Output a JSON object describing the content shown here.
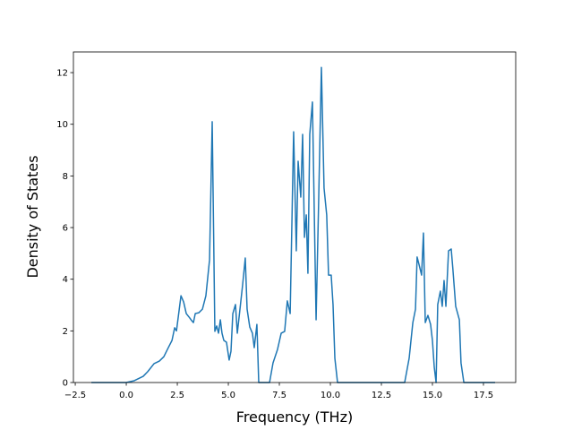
{
  "chart_data": {
    "type": "line",
    "x_label": "Frequency (THz)",
    "y_label": "Density of States",
    "color": "#1f77b4",
    "x": [
      -1.71,
      0,
      0.39,
      0.83,
      1.05,
      1.36,
      1.62,
      1.84,
      2.06,
      2.24,
      2.37,
      2.46,
      2.68,
      2.81,
      2.94,
      3.11,
      3.2,
      3.29,
      3.38,
      3.55,
      3.73,
      3.9,
      4.08,
      4.21,
      4.34,
      4.43,
      4.52,
      4.61,
      4.69,
      4.78,
      4.91,
      5.04,
      5.13,
      5.22,
      5.35,
      5.44,
      5.57,
      5.7,
      5.83,
      5.92,
      6.05,
      6.18,
      6.27,
      6.4,
      6.49,
      7.02,
      7.19,
      7.41,
      7.59,
      7.76,
      7.89,
      8.03,
      8.2,
      8.33,
      8.42,
      8.55,
      8.64,
      8.73,
      8.82,
      8.9,
      8.99,
      9.12,
      9.3,
      9.43,
      9.56,
      9.69,
      9.82,
      9.91,
      10.04,
      10.13,
      10.22,
      10.35,
      13.64,
      13.86,
      14.04,
      14.17,
      14.25,
      14.34,
      14.47,
      14.56,
      14.65,
      14.78,
      14.91,
      15.0,
      15.09,
      15.18,
      15.26,
      15.39,
      15.48,
      15.57,
      15.66,
      15.79,
      15.92,
      16.0,
      16.14,
      16.32,
      16.4,
      16.54,
      18.07
    ],
    "values": [
      0,
      0,
      0.07,
      0.24,
      0.42,
      0.73,
      0.83,
      1.0,
      1.35,
      1.63,
      2.12,
      2.0,
      3.36,
      3.12,
      2.67,
      2.5,
      2.4,
      2.32,
      2.67,
      2.7,
      2.84,
      3.36,
      4.75,
      10.1,
      1.98,
      2.19,
      1.91,
      2.43,
      1.91,
      1.63,
      1.56,
      0.87,
      1.21,
      2.67,
      3.02,
      1.91,
      2.84,
      3.78,
      4.82,
      2.84,
      2.15,
      1.91,
      1.35,
      2.25,
      0,
      0,
      0.76,
      1.28,
      1.91,
      1.98,
      3.16,
      2.67,
      9.71,
      5.1,
      8.57,
      7.18,
      9.61,
      5.62,
      6.49,
      4.23,
      9.61,
      10.86,
      2.43,
      7.18,
      12.2,
      7.53,
      6.49,
      4.16,
      4.16,
      3.02,
      0.94,
      0,
      0,
      0.94,
      2.32,
      2.84,
      4.86,
      4.58,
      4.16,
      5.79,
      2.32,
      2.6,
      2.25,
      1.63,
      0.59,
      0,
      3.02,
      3.54,
      2.95,
      3.95,
      2.95,
      5.1,
      5.17,
      4.41,
      2.95,
      2.43,
      0.76,
      0,
      0
    ],
    "xlim": [
      -2.59,
      19.08
    ],
    "ylim": [
      0,
      12.8
    ],
    "xticks": [
      {
        "value": -2.5,
        "label": "−2.5"
      },
      {
        "value": 0,
        "label": "0.0"
      },
      2.5,
      {
        "value": 5,
        "label": "5.0"
      },
      7.5,
      {
        "value": 10,
        "label": "10.0"
      },
      12.5,
      {
        "value": 15,
        "label": "15.0"
      },
      17.5
    ],
    "yticks": [
      0,
      2,
      4,
      6,
      8,
      10,
      12
    ],
    "grid": false
  }
}
